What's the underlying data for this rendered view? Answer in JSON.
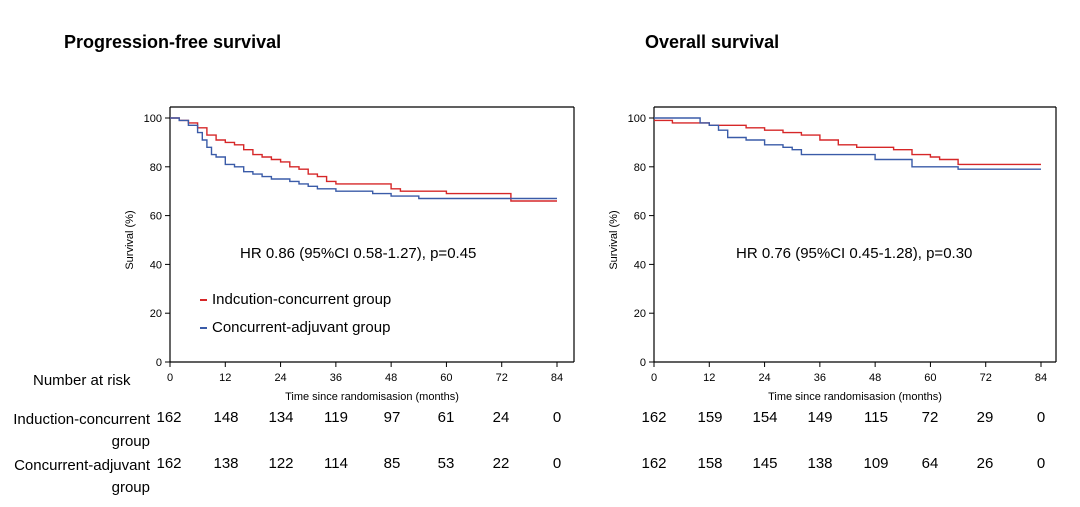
{
  "risk_header": "Number at risk",
  "groups": [
    {
      "name": "Induction-concurrent",
      "name2": "group"
    },
    {
      "name": "Concurrent-adjuvant",
      "name2": "group"
    }
  ],
  "panels": [
    {
      "title": "Progression-free survival",
      "hr": "HR 0.86 (95%CI 0.58-1.27), p=0.45",
      "legend": [
        "Indcution-concurrent group",
        "Concurrent-adjuvant group"
      ],
      "risk": [
        [
          162,
          148,
          134,
          119,
          97,
          61,
          24,
          0
        ],
        [
          162,
          138,
          122,
          114,
          85,
          53,
          22,
          0
        ]
      ]
    },
    {
      "title": "Overall survival",
      "hr": "HR 0.76 (95%CI 0.45-1.28), p=0.30",
      "risk": [
        [
          162,
          159,
          154,
          149,
          115,
          72,
          29,
          0
        ],
        [
          162,
          158,
          145,
          138,
          109,
          64,
          26,
          0
        ]
      ]
    }
  ],
  "chart_data": [
    {
      "type": "line",
      "title": "Progression-free survival",
      "xlabel": "Time since randomisasion (months)",
      "ylabel": "Survival (%)",
      "xlim": [
        0,
        84
      ],
      "ylim": [
        0,
        100
      ],
      "xticks": [
        0,
        12,
        24,
        36,
        48,
        60,
        72,
        84
      ],
      "yticks": [
        0,
        20,
        40,
        60,
        80,
        100
      ],
      "grid": false,
      "legend_position": "lower-left",
      "colors": {
        "Indcution-concurrent group": "#d62728",
        "Concurrent-adjuvant group": "#3a5ba8"
      },
      "series": [
        {
          "name": "Indcution-concurrent group",
          "x": [
            0,
            2,
            4,
            6,
            8,
            10,
            12,
            14,
            16,
            18,
            20,
            22,
            24,
            26,
            28,
            30,
            32,
            34,
            36,
            40,
            44,
            48,
            50,
            56,
            60,
            66,
            72,
            74,
            78,
            84
          ],
          "y": [
            100,
            99,
            98,
            96,
            93,
            91,
            90,
            89,
            87,
            85,
            84,
            83,
            82,
            80,
            79,
            77,
            76,
            74,
            73,
            73,
            73,
            71,
            70,
            70,
            69,
            69,
            69,
            66,
            66,
            66
          ]
        },
        {
          "name": "Concurrent-adjuvant group",
          "x": [
            0,
            2,
            4,
            6,
            7,
            8,
            9,
            10,
            12,
            14,
            16,
            18,
            20,
            22,
            24,
            26,
            28,
            30,
            32,
            36,
            40,
            44,
            48,
            54,
            60,
            66,
            72,
            78,
            84
          ],
          "y": [
            100,
            99,
            97,
            94,
            91,
            88,
            85,
            84,
            81,
            80,
            78,
            77,
            76,
            75,
            75,
            74,
            73,
            72,
            71,
            70,
            70,
            69,
            68,
            67,
            67,
            67,
            67,
            67,
            67
          ]
        }
      ]
    },
    {
      "type": "line",
      "title": "Overall survival",
      "xlabel": "Time since randomisasion (months)",
      "ylabel": "Survival (%)",
      "xlim": [
        0,
        84
      ],
      "ylim": [
        0,
        100
      ],
      "xticks": [
        0,
        12,
        24,
        36,
        48,
        60,
        72,
        84
      ],
      "yticks": [
        0,
        20,
        40,
        60,
        80,
        100
      ],
      "grid": false,
      "colors": {
        "Indcution-concurrent group": "#d62728",
        "Concurrent-adjuvant group": "#3a5ba8"
      },
      "series": [
        {
          "name": "Indcution-concurrent group",
          "x": [
            0,
            4,
            8,
            12,
            16,
            20,
            24,
            28,
            32,
            36,
            40,
            44,
            48,
            52,
            56,
            60,
            62,
            66,
            72,
            84
          ],
          "y": [
            99,
            98,
            98,
            97,
            97,
            96,
            95,
            94,
            93,
            91,
            89,
            88,
            88,
            87,
            85,
            84,
            83,
            81,
            81,
            81
          ]
        },
        {
          "name": "Concurrent-adjuvant group",
          "x": [
            0,
            6,
            10,
            12,
            14,
            16,
            20,
            24,
            28,
            30,
            32,
            36,
            40,
            48,
            52,
            56,
            60,
            66,
            72,
            84
          ],
          "y": [
            100,
            100,
            98,
            97,
            95,
            92,
            91,
            89,
            88,
            87,
            85,
            85,
            85,
            83,
            83,
            80,
            80,
            79,
            79,
            79
          ]
        }
      ]
    }
  ]
}
